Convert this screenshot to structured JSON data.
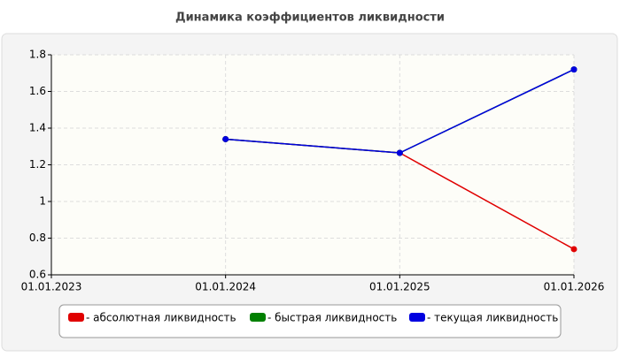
{
  "chart_data": {
    "type": "line",
    "title": "Динамика коэффициентов ликвидности",
    "categories": [
      "01.01.2023",
      "01.01.2024",
      "01.01.2025",
      "01.01.2026"
    ],
    "series": [
      {
        "name": "- абсолютная ликвидность",
        "color": "#e00000",
        "values": [
          null,
          1.34,
          1.265,
          0.74
        ]
      },
      {
        "name": "- быстрая ликвидность",
        "color": "#008000",
        "values": [
          null,
          1.34,
          1.265,
          1.72
        ]
      },
      {
        "name": "- текущая ликвидность",
        "color": "#0000e0",
        "values": [
          null,
          1.34,
          1.265,
          1.72
        ]
      }
    ],
    "ylim": [
      0.6,
      1.8
    ],
    "yticks": [
      0.6,
      0.8,
      1,
      1.2,
      1.4,
      1.6,
      1.8
    ],
    "grid": true
  }
}
